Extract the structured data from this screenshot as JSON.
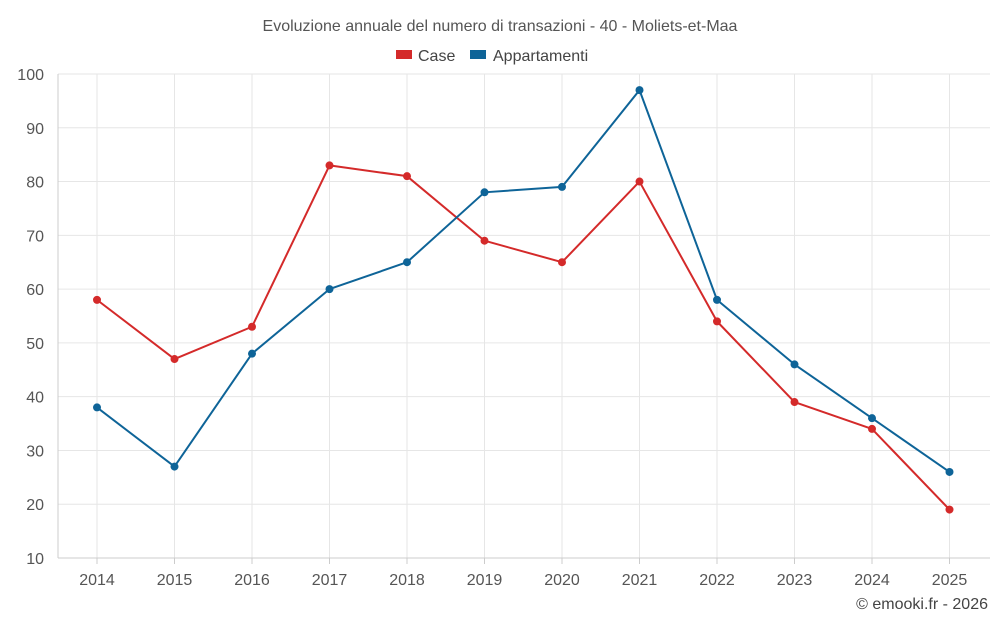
{
  "chart_data": {
    "type": "line",
    "title": "Evoluzione annuale del numero di transazioni - 40 - Moliets-et-Maa",
    "categories": [
      "2014",
      "2015",
      "2016",
      "2017",
      "2018",
      "2019",
      "2020",
      "2021",
      "2022",
      "2023",
      "2024",
      "2025"
    ],
    "series": [
      {
        "name": "Case",
        "color": "#d42a2a",
        "values": [
          58,
          47,
          53,
          83,
          81,
          69,
          65,
          80,
          54,
          39,
          34,
          19
        ]
      },
      {
        "name": "Appartamenti",
        "color": "#0e6498",
        "values": [
          38,
          27,
          48,
          60,
          65,
          78,
          79,
          97,
          58,
          46,
          36,
          26
        ]
      }
    ],
    "ylim": [
      10,
      100
    ],
    "yticks": [
      10,
      20,
      30,
      40,
      50,
      60,
      70,
      80,
      90,
      100
    ],
    "grid": true,
    "legend": "top-center"
  },
  "credit": "© emooki.fr - 2026"
}
